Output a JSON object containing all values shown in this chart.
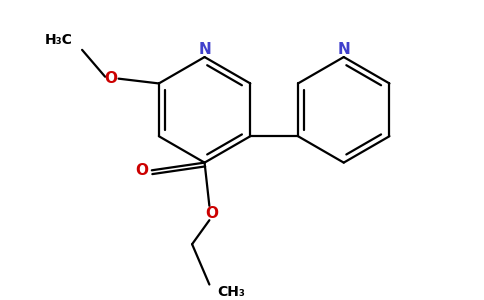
{
  "bg_color": "#ffffff",
  "bond_color": "#000000",
  "nitrogen_color": "#4040cc",
  "oxygen_color": "#cc0000",
  "lw": 1.6,
  "figsize": [
    4.84,
    3.0
  ],
  "dpi": 100,
  "xlim": [
    0,
    484
  ],
  "ylim": [
    0,
    300
  ]
}
